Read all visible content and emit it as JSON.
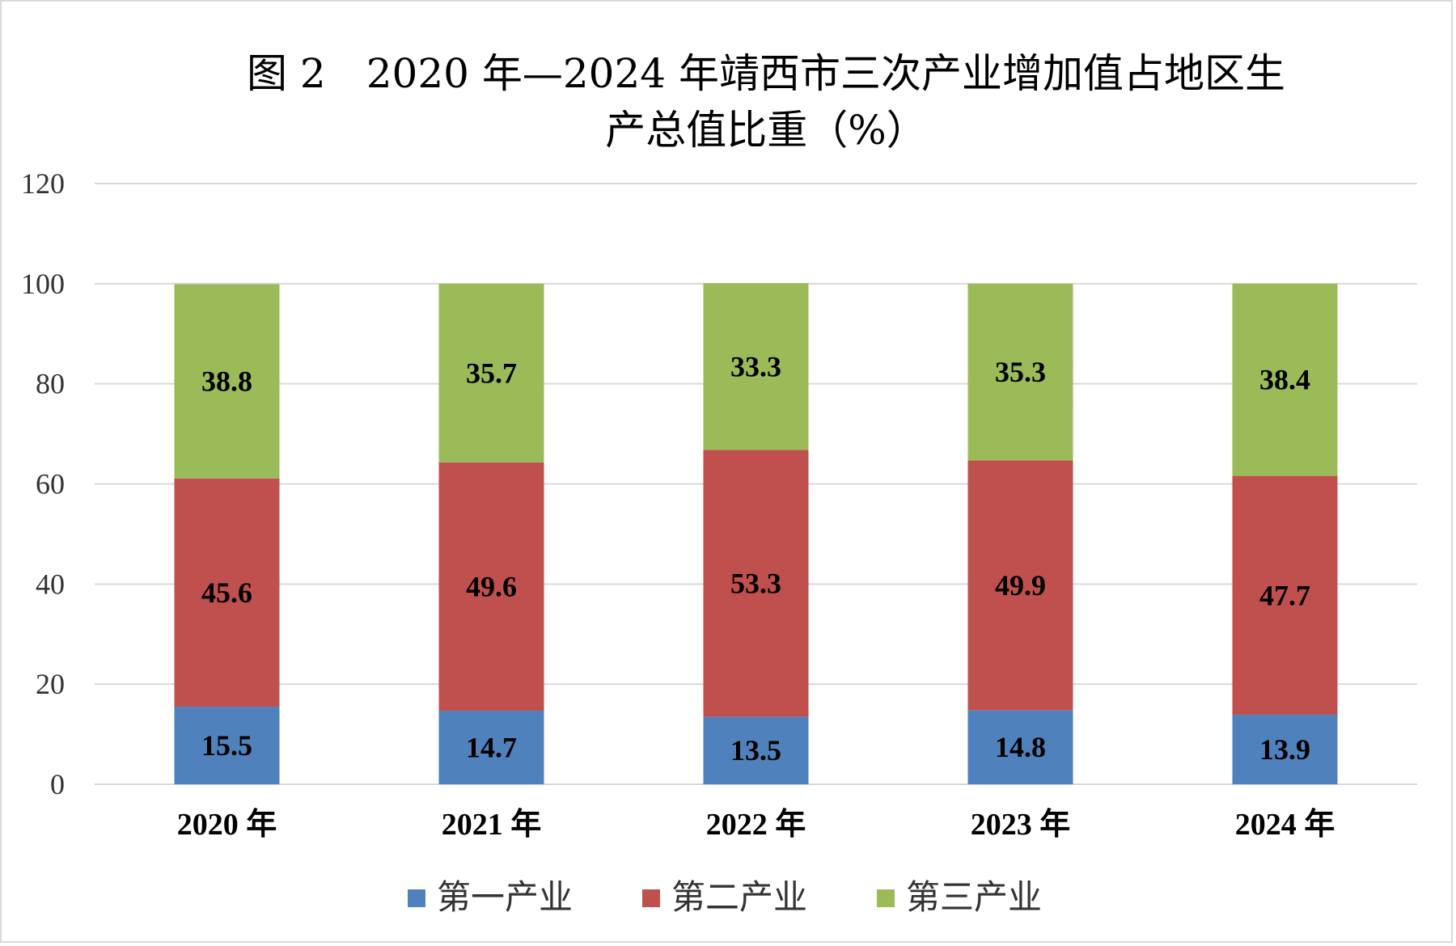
{
  "chart_data": {
    "type": "bar",
    "stacked": true,
    "title": "图 2　2020 年—2024 年靖西市三次产业增加值占地区生",
    "title_line2": "产总值比重（%）",
    "xlabel": "",
    "ylabel": "",
    "ylim": [
      0,
      120
    ],
    "yticks": [
      0,
      20,
      40,
      60,
      80,
      100,
      120
    ],
    "grid": true,
    "legend_position": "bottom",
    "categories": [
      "2020 年",
      "2021 年",
      "2022 年",
      "2023 年",
      "2024 年"
    ],
    "series": [
      {
        "name": "第一产业",
        "color": "#4f81bd",
        "values": [
          15.5,
          14.7,
          13.5,
          14.8,
          13.9
        ]
      },
      {
        "name": "第二产业",
        "color": "#c0504d",
        "values": [
          45.6,
          49.6,
          53.3,
          49.9,
          47.7
        ]
      },
      {
        "name": "第三产业",
        "color": "#9bbb59",
        "values": [
          38.8,
          35.7,
          33.3,
          35.3,
          38.4
        ]
      }
    ]
  }
}
